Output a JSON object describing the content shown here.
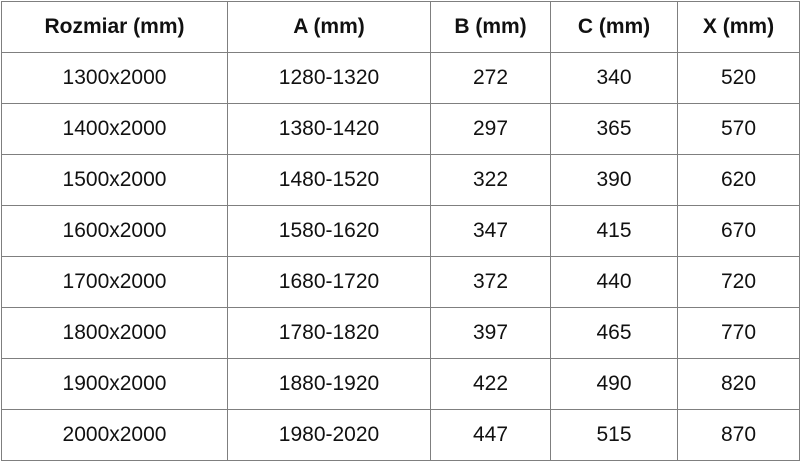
{
  "table": {
    "header": [
      "Rozmiar (mm)",
      "A (mm)",
      "B (mm)",
      "C (mm)",
      "X (mm)"
    ],
    "rows": [
      [
        "1300x2000",
        "1280-1320",
        272,
        340,
        520
      ],
      [
        "1400x2000",
        "1380-1420",
        297,
        365,
        570
      ],
      [
        "1500x2000",
        "1480-1520",
        322,
        390,
        620
      ],
      [
        "1600x2000",
        "1580-1620",
        347,
        415,
        670
      ],
      [
        "1700x2000",
        "1680-1720",
        372,
        440,
        720
      ],
      [
        "1800x2000",
        "1780-1820",
        397,
        465,
        770
      ],
      [
        "1900x2000",
        "1880-1920",
        422,
        490,
        820
      ],
      [
        "2000x2000",
        "1980-2020",
        447,
        515,
        870
      ]
    ]
  }
}
